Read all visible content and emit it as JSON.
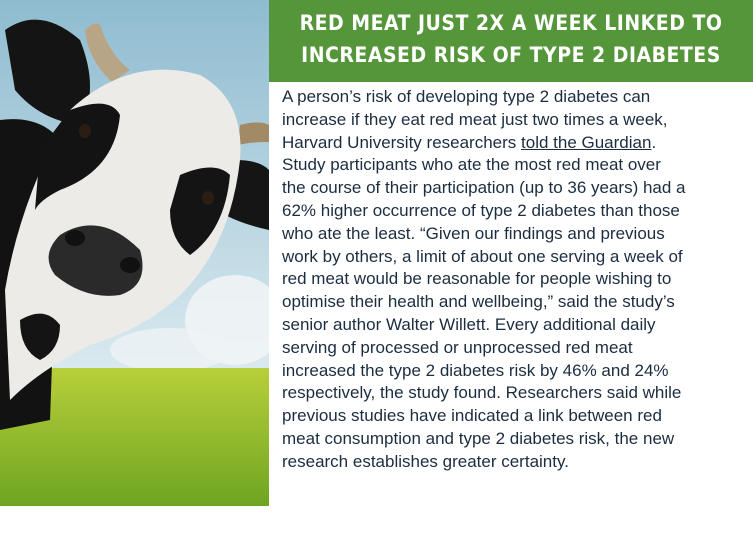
{
  "colors": {
    "header_bg": "#55963a",
    "header_text": "#ffffff",
    "body_text": "#1c2d40"
  },
  "image": {
    "subject": "cow-in-field"
  },
  "header": {
    "lines": [
      "RED MEAT JUST 2X A WEEK LINKED TO",
      "INCREASED RISK OF TYPE 2 DIABETES"
    ]
  },
  "body": {
    "line3_prefix": "Harvard University researchers ",
    "link_text": "told the Guardian",
    "line3_suffix": ".",
    "lines": [
      "A person’s risk of developing type 2 diabetes can",
      "increase if they eat red meat just two times a week,",
      "",
      "Study participants who ate the most red meat over",
      "the course of their participation (up to 36 years) had a",
      "62% higher occurrence of type 2 diabetes than those",
      "who ate the least. “Given our findings and previous",
      "work by others, a limit of about one serving a week of",
      "red meat would be reasonable for people wishing to",
      "optimise their health and wellbeing,” said the study’s",
      "senior author Walter Willett. Every additional daily",
      "serving of processed or unprocessed red meat",
      "increased the type 2 diabetes risk by 46% and 24%",
      "respectively, the study found. Researchers said while",
      "previous studies have indicated a link between red",
      "meat consumption and type 2 diabetes risk, the new",
      "research establishes greater certainty."
    ]
  }
}
